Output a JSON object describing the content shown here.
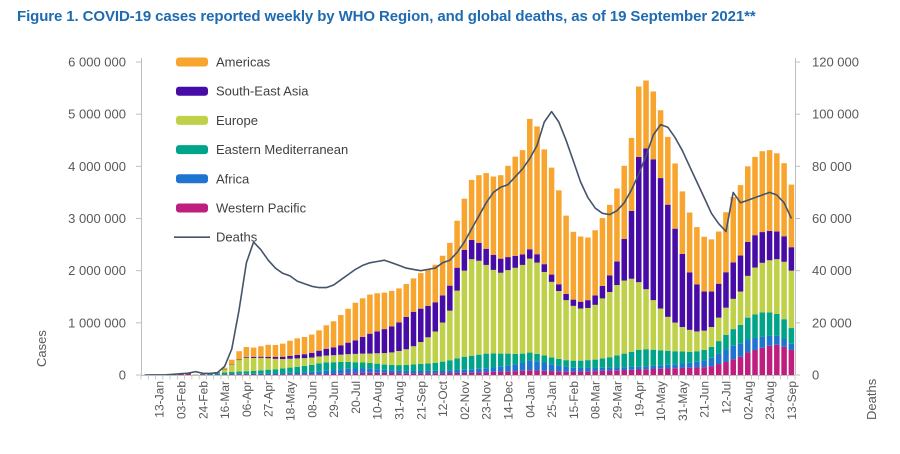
{
  "chart_data": {
    "type": "stacked-bar+line",
    "title": "Figure 1. COVID-19 cases reported weekly by WHO Region, and global deaths, as of 19 September 2021**",
    "n_weeks": 90,
    "x_tick_labels": [
      "13-Jan",
      "03-Feb",
      "24-Feb",
      "16-Mar",
      "06-Apr",
      "27-Apr",
      "18-May",
      "08-Jun",
      "29-Jun",
      "20-Jul",
      "10-Aug",
      "31-Aug",
      "21-Sep",
      "12-Oct",
      "02-Nov",
      "23-Nov",
      "14-Dec",
      "04-Jan",
      "25-Jan",
      "15-Feb",
      "08-Mar",
      "29-Mar",
      "19-Apr",
      "10-May",
      "31-May",
      "21-Jun",
      "12-Jul",
      "02-Aug",
      "23-Aug",
      "13-Sep"
    ],
    "label_start_index": 2,
    "label_step": 3,
    "left_axis": {
      "label": "Cases",
      "max": 6000000,
      "step": 1000000,
      "ticks": [
        "0",
        "1 000 000",
        "2 000 000",
        "3 000 000",
        "4 000 000",
        "5 000 000",
        "6 000 000"
      ]
    },
    "right_axis": {
      "label": "Deaths",
      "max": 120000,
      "step": 20000,
      "ticks": [
        "0",
        "20 000",
        "40 000",
        "60 000",
        "80 000",
        "100 000",
        "120 000"
      ]
    },
    "values_unit": "cases series are thousands of reported cases per week (multiply by value_multiplier); deaths are counts per week",
    "value_multiplier": 1000,
    "series": [
      {
        "name": "Western Pacific",
        "key": "western-pacific",
        "color": "#BE1E7D",
        "values": [
          1,
          3,
          1,
          3,
          16,
          25,
          40,
          6,
          6,
          7,
          8,
          10,
          12,
          13,
          12,
          10,
          9,
          9,
          10,
          11,
          12,
          13,
          14,
          15,
          16,
          18,
          20,
          25,
          30,
          35,
          40,
          42,
          42,
          40,
          38,
          35,
          33,
          32,
          32,
          33,
          34,
          36,
          38,
          39,
          40,
          45,
          50,
          55,
          60,
          65,
          70,
          75,
          80,
          90,
          85,
          80,
          75,
          70,
          65,
          65,
          65,
          70,
          75,
          80,
          85,
          90,
          95,
          100,
          105,
          110,
          115,
          120,
          125,
          130,
          135,
          140,
          145,
          150,
          170,
          210,
          250,
          300,
          350,
          430,
          480,
          520,
          560,
          580,
          540,
          480
        ]
      },
      {
        "name": "Africa",
        "key": "africa",
        "color": "#1E74CF",
        "values": [
          0,
          0,
          0,
          0,
          0,
          0,
          0,
          0,
          0,
          1,
          1,
          2,
          5,
          8,
          10,
          12,
          15,
          18,
          20,
          25,
          30,
          35,
          40,
          45,
          55,
          65,
          75,
          85,
          90,
          90,
          85,
          80,
          70,
          60,
          55,
          50,
          45,
          45,
          45,
          45,
          45,
          50,
          55,
          58,
          60,
          65,
          70,
          75,
          85,
          95,
          110,
          130,
          150,
          190,
          180,
          160,
          130,
          110,
          90,
          75,
          70,
          65,
          60,
          58,
          56,
          55,
          55,
          55,
          55,
          55,
          60,
          65,
          70,
          75,
          85,
          95,
          110,
          130,
          160,
          200,
          240,
          260,
          250,
          250,
          230,
          210,
          190,
          170,
          150,
          120
        ]
      },
      {
        "name": "Eastern Mediterranean",
        "key": "eastern-mediterranean",
        "color": "#00A489",
        "values": [
          0,
          0,
          0,
          0,
          0,
          0,
          1,
          3,
          8,
          15,
          25,
          35,
          40,
          45,
          50,
          55,
          65,
          75,
          80,
          90,
          100,
          110,
          120,
          135,
          150,
          160,
          150,
          140,
          130,
          120,
          115,
          110,
          105,
          100,
          100,
          105,
          115,
          125,
          135,
          145,
          155,
          170,
          190,
          220,
          250,
          260,
          270,
          280,
          270,
          250,
          230,
          200,
          180,
          150,
          140,
          135,
          130,
          130,
          130,
          135,
          140,
          150,
          160,
          180,
          200,
          230,
          260,
          290,
          320,
          330,
          310,
          290,
          270,
          250,
          230,
          210,
          200,
          200,
          210,
          240,
          280,
          320,
          360,
          420,
          450,
          470,
          450,
          420,
          380,
          300
        ]
      },
      {
        "name": "Europe",
        "key": "europe",
        "color": "#BFD148",
        "values": [
          0,
          0,
          0,
          0,
          0,
          0,
          0,
          1,
          2,
          5,
          15,
          60,
          140,
          220,
          260,
          250,
          240,
          220,
          200,
          180,
          170,
          160,
          150,
          140,
          135,
          130,
          135,
          140,
          150,
          160,
          170,
          180,
          200,
          220,
          240,
          270,
          300,
          350,
          420,
          500,
          600,
          750,
          950,
          1300,
          1650,
          1850,
          1800,
          1700,
          1600,
          1550,
          1600,
          1650,
          1700,
          1800,
          1750,
          1600,
          1450,
          1300,
          1150,
          1050,
          1000,
          1000,
          1050,
          1150,
          1250,
          1350,
          1400,
          1400,
          1300,
          1150,
          950,
          800,
          650,
          550,
          470,
          420,
          380,
          370,
          380,
          450,
          520,
          580,
          640,
          800,
          900,
          950,
          1000,
          1050,
          1100,
          1100
        ]
      },
      {
        "name": "South-East Asia",
        "key": "south-east-asia",
        "color": "#470CA5",
        "values": [
          0,
          0,
          0,
          0,
          0,
          0,
          0,
          0,
          1,
          1,
          2,
          3,
          6,
          10,
          15,
          18,
          22,
          27,
          35,
          45,
          55,
          65,
          75,
          90,
          110,
          130,
          150,
          180,
          220,
          260,
          320,
          380,
          420,
          460,
          500,
          550,
          620,
          660,
          640,
          600,
          560,
          520,
          480,
          440,
          400,
          370,
          340,
          310,
          290,
          270,
          250,
          230,
          200,
          180,
          160,
          150,
          140,
          130,
          120,
          120,
          130,
          150,
          180,
          240,
          320,
          450,
          800,
          1300,
          2400,
          2700,
          2700,
          2500,
          2150,
          1800,
          1400,
          1100,
          900,
          750,
          680,
          650,
          680,
          700,
          690,
          650,
          620,
          590,
          560,
          530,
          490,
          450
        ]
      },
      {
        "name": "Americas",
        "key": "americas",
        "color": "#F7A52F",
        "values": [
          0,
          0,
          0,
          0,
          0,
          0,
          0,
          0,
          0,
          1,
          4,
          30,
          90,
          160,
          190,
          180,
          200,
          230,
          230,
          250,
          290,
          320,
          330,
          350,
          390,
          450,
          500,
          580,
          650,
          720,
          740,
          750,
          730,
          700,
          680,
          650,
          630,
          640,
          680,
          700,
          720,
          760,
          820,
          900,
          980,
          1150,
          1300,
          1450,
          1500,
          1600,
          1750,
          1900,
          2000,
          2500,
          2450,
          2200,
          2050,
          1800,
          1500,
          1300,
          1250,
          1200,
          1250,
          1300,
          1350,
          1400,
          1400,
          1400,
          1350,
          1300,
          1300,
          1300,
          1300,
          1250,
          1200,
          1150,
          1100,
          1050,
          1000,
          1000,
          1150,
          1250,
          1350,
          1450,
          1500,
          1550,
          1550,
          1500,
          1400,
          1200
        ]
      }
    ],
    "line_series": {
      "name": "Deaths",
      "key": "deaths",
      "color": "#44546A",
      "axis": "right",
      "values": [
        10,
        20,
        30,
        80,
        260,
        490,
        690,
        1300,
        650,
        600,
        900,
        3300,
        10000,
        25000,
        43000,
        51000,
        48000,
        44000,
        41000,
        39000,
        38000,
        36000,
        35000,
        34000,
        33500,
        33500,
        34500,
        36500,
        38500,
        40500,
        42000,
        43000,
        43500,
        44000,
        43000,
        42000,
        41000,
        40500,
        40000,
        40500,
        41000,
        43000,
        44000,
        47000,
        51000,
        56000,
        61000,
        66000,
        70000,
        72000,
        73000,
        76000,
        79000,
        83000,
        88000,
        97000,
        101000,
        97000,
        90000,
        82000,
        74000,
        68000,
        64000,
        62000,
        61500,
        63000,
        66000,
        71000,
        77000,
        84000,
        92000,
        96000,
        95000,
        91000,
        86000,
        80000,
        74000,
        68000,
        62000,
        58000,
        55000,
        70000,
        66000,
        67000,
        68000,
        69000,
        70000,
        69000,
        66000,
        60000
      ]
    },
    "legend": [
      {
        "label": "Americas",
        "color": "#F7A52F",
        "swatch": "bar"
      },
      {
        "label": "South-East Asia",
        "color": "#470CA5",
        "swatch": "bar"
      },
      {
        "label": "Europe",
        "color": "#BFD148",
        "swatch": "bar"
      },
      {
        "label": "Eastern Mediterranean",
        "color": "#00A489",
        "swatch": "bar"
      },
      {
        "label": "Africa",
        "color": "#1E74CF",
        "swatch": "bar"
      },
      {
        "label": "Western Pacific",
        "color": "#BE1E7D",
        "swatch": "bar"
      },
      {
        "label": "Deaths",
        "color": "#44546A",
        "swatch": "line"
      }
    ],
    "colors": {
      "title": "#1F6BB2",
      "axis_line": "#BFBFBF",
      "tick_text": "#595959"
    }
  }
}
